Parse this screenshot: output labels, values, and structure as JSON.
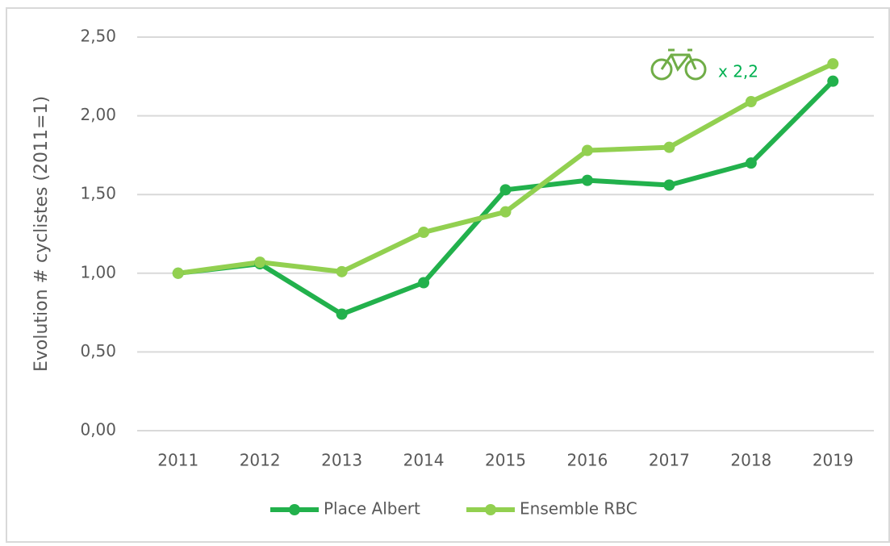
{
  "chart_data": {
    "type": "line",
    "y_axis_label": "Evolution # cyclistes (2011=1)",
    "categories": [
      "2011",
      "2012",
      "2013",
      "2014",
      "2015",
      "2016",
      "2017",
      "2018",
      "2019"
    ],
    "series": [
      {
        "name": "Place Albert",
        "color": "#22b14c",
        "values": [
          1.0,
          1.06,
          0.74,
          0.94,
          1.53,
          1.59,
          1.56,
          1.7,
          2.22
        ]
      },
      {
        "name": "Ensemble RBC",
        "color": "#92d050",
        "values": [
          1.0,
          1.07,
          1.01,
          1.26,
          1.39,
          1.78,
          1.8,
          2.09,
          2.33
        ]
      }
    ],
    "ylim": [
      0,
      2.5
    ],
    "yticks": [
      {
        "value": 0,
        "label": "0,00"
      },
      {
        "value": 0.5,
        "label": "0,50"
      },
      {
        "value": 1,
        "label": "1,00"
      },
      {
        "value": 1.5,
        "label": "1,50"
      },
      {
        "value": 2,
        "label": "2,00"
      },
      {
        "value": 2.5,
        "label": "2,50"
      }
    ],
    "grid": true,
    "legend": "bottom",
    "annotation": "x 2,2",
    "annotation_color": "#00b050"
  }
}
